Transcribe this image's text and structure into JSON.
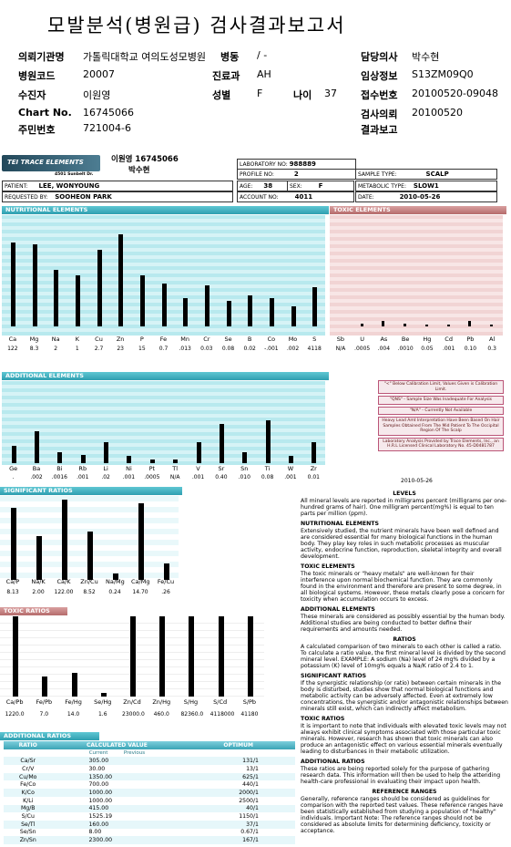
{
  "report": {
    "title": "모발분석(병원급) 검사결과보고서",
    "rows": [
      [
        {
          "label": "의뢰기관명",
          "value": "가톨릭대학교 여의도성모병원"
        },
        {
          "label": "병동",
          "value": "/ -"
        },
        {
          "label": "담당의사",
          "value": "박수현"
        }
      ],
      [
        {
          "label": "병원코드",
          "value": "20007"
        },
        {
          "label": "진료과",
          "value": "AH"
        },
        {
          "label": "임상정보",
          "value": "S13ZM09Q0"
        }
      ],
      [
        {
          "label": "수진자",
          "value": "이원영"
        },
        {
          "label": "성별",
          "value": "F"
        },
        {
          "label": "나이",
          "value": "37"
        },
        {
          "label": "접수번호",
          "value": "20100520-09048"
        }
      ],
      [
        {
          "label": "Chart No.",
          "value": "16745066"
        },
        {
          "label": "검사의뢰",
          "value": "20100520"
        }
      ],
      [
        {
          "label": "주민번호",
          "value": "721004-6"
        },
        {
          "label": "결과보고",
          "value": ""
        }
      ]
    ]
  },
  "scan": {
    "logo": "TEI TRACE ELEMENTS",
    "address": "4501 Sunbelt Dr.",
    "stamp_name": "이원영 16745066",
    "stamp_name2": "박수현",
    "laboratory_no_label": "LABORATORY NO:",
    "laboratory_no": "988889",
    "profile_no_label": "PROFILE NO:",
    "profile_no": "2",
    "sample_type_label": "SAMPLE TYPE:",
    "sample_type": "SCALP",
    "patient_label": "PATIENT:",
    "patient": "LEE, WONYOUNG",
    "age_label": "AGE:",
    "age": "38",
    "sex_label": "SEX:",
    "sex": "F",
    "metabolic_type_label": "METABOLIC TYPE:",
    "metabolic_type": "SLOW1",
    "requested_by_label": "REQUESTED BY:",
    "requested_by": "SOOHEON PARK",
    "account_no_label": "ACCOUNT NO:",
    "account_no": "4011",
    "date_label": "DATE:",
    "date": "2010-05-26",
    "date2": "2010-05-26"
  },
  "sections": {
    "nutritional": "NUTRITIONAL ELEMENTS",
    "toxic": "TOXIC ELEMENTS",
    "additional": "ADDITIONAL ELEMENTS",
    "sig_ratios": "SIGNIFICANT RATIOS",
    "tox_ratios": "TOXIC RATIOS",
    "add_ratios": "ADDITIONAL RATIOS"
  },
  "nutritional": {
    "labels": [
      "Ca",
      "Mg",
      "Na",
      "K",
      "Cu",
      "Zn",
      "P",
      "Fe",
      "Mn",
      "Cr",
      "Se",
      "B",
      "Co",
      "Mo",
      "S"
    ],
    "values": [
      "122",
      "8.3",
      "2",
      "1",
      "2.7",
      "23",
      "15",
      "0.7",
      ".013",
      "0.03",
      "0.08",
      "0.02",
      "-.001",
      ".002",
      "4118"
    ],
    "level": [
      0.82,
      0.8,
      0.55,
      0.5,
      0.75,
      0.9,
      0.5,
      0.42,
      0.28,
      0.4,
      0.25,
      0.3,
      0.28,
      0.2,
      0.38
    ]
  },
  "toxic": {
    "labels": [
      "Sb",
      "U",
      "As",
      "Be",
      "Hg",
      "Cd",
      "Pb",
      "Al"
    ],
    "values": [
      "N/A",
      ".0005",
      ".004",
      ".0010",
      "0.05",
      ".001",
      "0.10",
      "0.3"
    ],
    "level": [
      0,
      0.03,
      0.05,
      0.03,
      0.02,
      0.02,
      0.05,
      0.02
    ]
  },
  "additional": {
    "labels": [
      "Ge",
      "Ba",
      "Bi",
      "Rb",
      "Li",
      "Ni",
      "Pt",
      "Tl",
      "V",
      "Sr",
      "Sn",
      "Ti",
      "W",
      "Zr"
    ],
    "values": [
      ".",
      ".002",
      ".0016",
      ".001",
      ".02",
      ".001",
      ".0005",
      "N/A",
      ".001",
      "0.40",
      ".010",
      "0.08",
      ".001",
      "0.01"
    ],
    "level": [
      0.25,
      0.45,
      0.15,
      0.12,
      0.3,
      0.1,
      0.05,
      0.05,
      0.3,
      0.55,
      0.15,
      0.6,
      0.1,
      0.3
    ]
  },
  "significant_ratios": {
    "labels": [
      "Ca/P",
      "Na/K",
      "Ca/K",
      "Zn/Cu",
      "Na/Mg",
      "Ca/Mg",
      "Fe/Cu"
    ],
    "values": [
      "8.13",
      "2.00",
      "122.00",
      "8.52",
      "0.24",
      "14.70",
      ".26"
    ],
    "level": [
      0.9,
      0.55,
      1,
      0.6,
      0.08,
      0.95,
      0.2
    ]
  },
  "toxic_ratios": {
    "labels": [
      "Ca/Pb",
      "Fe/Pb",
      "Fe/Hg",
      "Se/Hg",
      "Zn/Cd",
      "Zn/Hg",
      "S/Hg",
      "S/Cd",
      "S/Pb"
    ],
    "values": [
      "1220.0",
      "7.0",
      "14.0",
      "1.6",
      "23000.0",
      "460.0",
      "82360.0",
      "4118000",
      "41180"
    ],
    "level": [
      1,
      0.25,
      0.3,
      0.05,
      1,
      1,
      1,
      1,
      1
    ]
  },
  "additional_ratios": {
    "header": [
      "RATIO",
      "CALCULATED VALUE",
      "OPTIMUM"
    ],
    "sub": [
      "Current",
      "Previous"
    ],
    "rows": [
      [
        "Ca/Sr",
        "305.00",
        "131/1"
      ],
      [
        "Cr/V",
        "30.00",
        "13/1"
      ],
      [
        "Cu/Mo",
        "1350.00",
        "625/1"
      ],
      [
        "Fe/Co",
        "700.00",
        "440/1"
      ],
      [
        "K/Co",
        "1000.00",
        "2000/1"
      ],
      [
        "K/Li",
        "1000.00",
        "2500/1"
      ],
      [
        "Mg/B",
        "415.00",
        "40/1"
      ],
      [
        "S/Cu",
        "1525.19",
        "1150/1"
      ],
      [
        "Se/Tl",
        "160.00",
        "37/1"
      ],
      [
        "Se/Sn",
        "8.00",
        "0.67/1"
      ],
      [
        "Zn/Sn",
        "2300.00",
        "167/1"
      ]
    ]
  },
  "legend": [
    "\"<\" Below Calibration Limit, Values Given is Calibration Limit.",
    "\"QNS\" - Sample Size Was Inadequate For Analysis",
    "\"N/A\" - Currently Not Available",
    "Heavy Lead Amt Interpretation Have Been Based On Hair Samples Obtained From The Mid Patient To The Occipital Region Of The Scalp",
    "Laboratory Analysis Provided by Trace Elements, Inc., an H.R.L Licensed Clinical Laboratory No. 45-D0481787"
  ],
  "right_text": [
    {
      "h": "LEVELS",
      "p": "All mineral levels are reported in milligrams percent (milligrams per one-hundred grams of hair). One milligram percent(mg%) is equal to ten parts per million (ppm)."
    },
    {
      "h": "NUTRITIONAL ELEMENTS",
      "p": "Extensively studied, the nutrient minerals have been well defined and are considered essential for many biological functions in the human body. They play key roles in such metabolic processes as muscular activity, endocrine function, reproduction, skeletal integrity and overall development."
    },
    {
      "h": "TOXIC ELEMENTS",
      "p": "The toxic minerals or \"heavy metals\" are well-known for their interference upon normal biochemical function. They are commonly found in the environment and therefore are present to some degree, in all biological systems. However, these metals clearly pose a concern for toxicity when accumulation occurs to excess."
    },
    {
      "h": "ADDITIONAL ELEMENTS",
      "p": "These minerals are considered as possibly essential by the human body. Additional studies are being conducted to better define their requirements and amounts needed."
    },
    {
      "h": "RATIOS",
      "p": "A calculated comparison of two minerals to each other is called a ratio. To calculate a ratio value, the first mineral level is divided by the second mineral level. EXAMPLE: A sodium (Na) level of 24 mg% divided by a potassium (K) level of 10mg% equals a Na/K ratio of 2.4 to 1."
    },
    {
      "h": "SIGNIFICANT RATIOS",
      "p": "If the synergistic relationship (or ratio) between certain minerals in the body is disturbed, studies show that normal biological functions and metabolic activity can be adversely affected. Even at extremely low concentrations, the synergistic and/or antagonistic relationships between minerals still exist, which can indirectly affect metabolism."
    },
    {
      "h": "TOXIC RATIOS",
      "p": "It is important to note that individuals with elevated toxic levels may not always exhibit clinical symptoms associated with those particular toxic minerals. However, research has shown that toxic minerals can also produce an antagonistic effect on various essential minerals eventually leading to disturbances in their metabolic utilization."
    },
    {
      "h": "ADDITIONAL RATIOS",
      "p": "These ratios are being reported solely for the purpose of gathering research data. This information will then be used to help the attending health-care professional in evaluating their impact upon health."
    },
    {
      "h": "REFERENCE RANGES",
      "p": "Generally, reference ranges should be considered as guidelines for comparison with the reported test values. These reference ranges have been statistically established from studying a population of \"healthy\" individuals. Important Note: The reference ranges should not be considered as absolute limits for determining deficiency, toxicity or acceptance."
    }
  ]
}
